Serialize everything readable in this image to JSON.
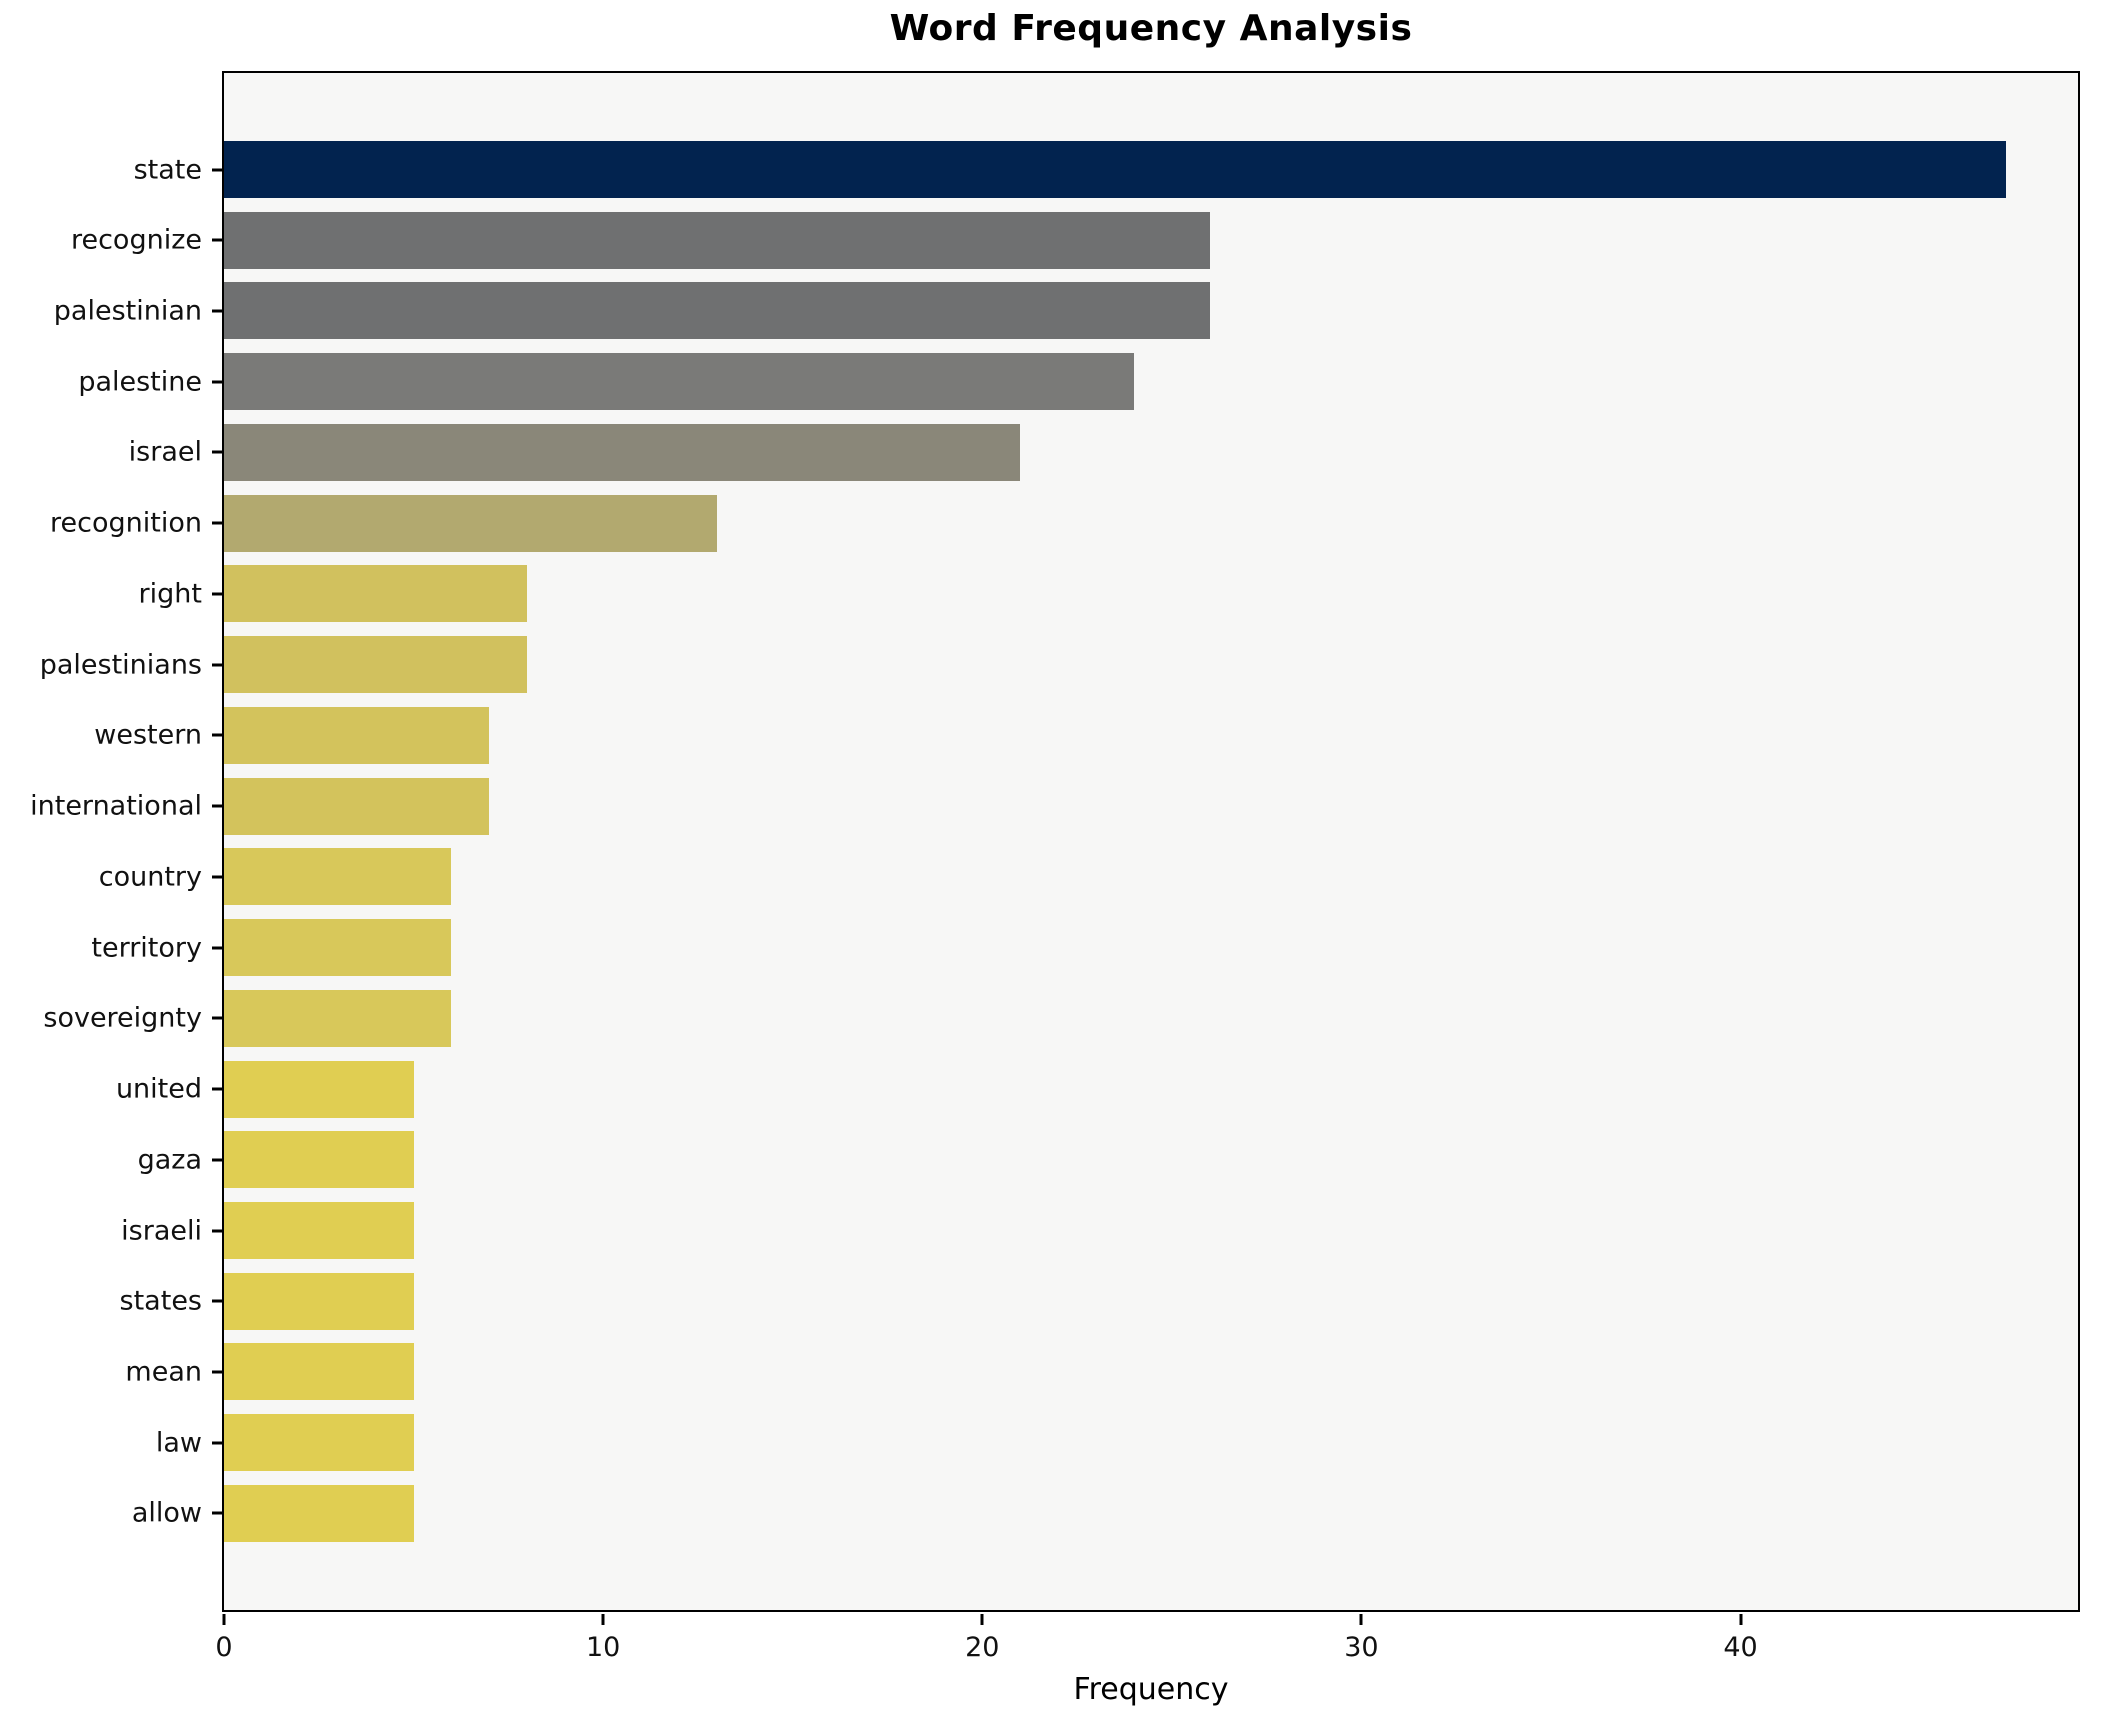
{
  "title": "Word Frequency Analysis",
  "xlabel": "Frequency",
  "chart_data": {
    "type": "bar",
    "orientation": "horizontal",
    "title": "Word Frequency Analysis",
    "xlabel": "Frequency",
    "ylabel": "",
    "categories": [
      "state",
      "recognize",
      "palestinian",
      "palestine",
      "israel",
      "recognition",
      "right",
      "palestinians",
      "western",
      "international",
      "country",
      "territory",
      "sovereignty",
      "united",
      "gaza",
      "israeli",
      "states",
      "mean",
      "law",
      "allow"
    ],
    "values": [
      47,
      26,
      26,
      24,
      21,
      13,
      8,
      8,
      7,
      7,
      6,
      6,
      6,
      5,
      5,
      5,
      5,
      5,
      5,
      5
    ],
    "bar_colors": [
      "#02234f",
      "#6f7071",
      "#6f7071",
      "#7a7a78",
      "#8a8779",
      "#b2a96f",
      "#d1c15e",
      "#d1c15e",
      "#d3c35c",
      "#d3c35c",
      "#d8c85a",
      "#d8c85a",
      "#d8c85a",
      "#e0ce52",
      "#e0ce52",
      "#e0ce52",
      "#e0ce52",
      "#e0ce52",
      "#e0ce52",
      "#e0ce52"
    ],
    "xlim": [
      0,
      48.9
    ],
    "x_ticks": [
      0,
      10,
      20,
      30,
      40
    ],
    "grid": false,
    "legend": null,
    "plot_bg": "#f7f7f6",
    "figure_bg": "#ffffff",
    "colormap_hint": "cividis (high value = dark navy, low value = yellow)"
  }
}
